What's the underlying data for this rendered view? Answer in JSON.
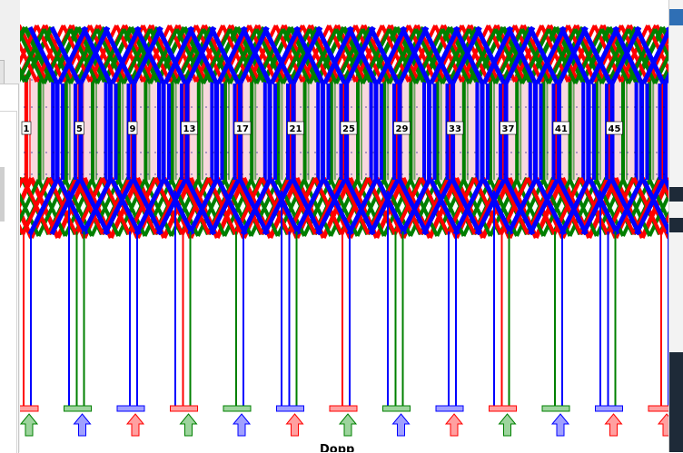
{
  "diagram": {
    "thread_numbers": [
      "1",
      "5",
      "9",
      "13",
      "17",
      "21",
      "25",
      "29",
      "33",
      "37",
      "41",
      "45"
    ],
    "colors": {
      "red": "#ff0000",
      "green": "#008000",
      "blue": "#0000ff"
    },
    "footer_label": "Dopp"
  },
  "icons": {
    "arrow": "up-arrow-icon",
    "peg": "warp-peg-icon"
  }
}
